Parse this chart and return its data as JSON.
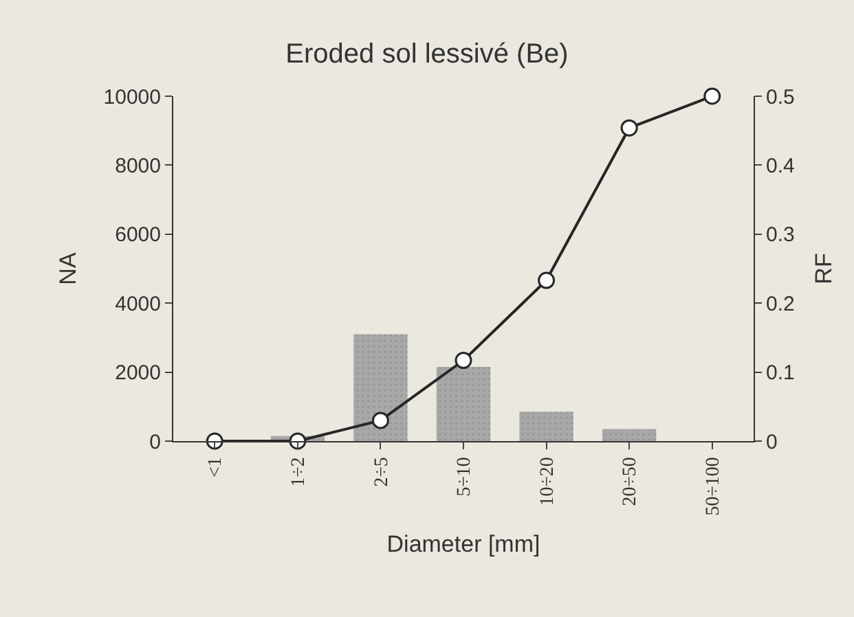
{
  "chart_data": {
    "type": "bar",
    "title": "Eroded sol lessivé (Be)",
    "xlabel": "Diameter [mm]",
    "ylabel": "NA",
    "y2label": "RF",
    "categories": [
      "<1",
      "1÷2",
      "2÷5",
      "5÷10",
      "10÷20",
      "20÷50",
      "50÷100"
    ],
    "series": [
      {
        "name": null,
        "color": "#a8a8a8",
        "values": [
          0,
          150,
          3100,
          2150,
          850,
          350,
          0
        ]
      },
      {
        "name": null,
        "type": "line",
        "axis": "y2",
        "color": "#262626",
        "values": [
          0,
          0,
          0.03,
          0.117,
          0.233,
          0.454,
          0.5
        ]
      }
    ],
    "ylim": [
      0,
      10000
    ],
    "yticks": [
      0,
      2000,
      4000,
      6000,
      8000,
      10000
    ],
    "y2lim": [
      0,
      0.5
    ],
    "y2ticks": [
      0,
      0.1,
      0.2,
      0.3,
      0.4,
      0.5
    ],
    "grid": false,
    "legend": false,
    "marker": "circle",
    "line_style": "solid"
  }
}
